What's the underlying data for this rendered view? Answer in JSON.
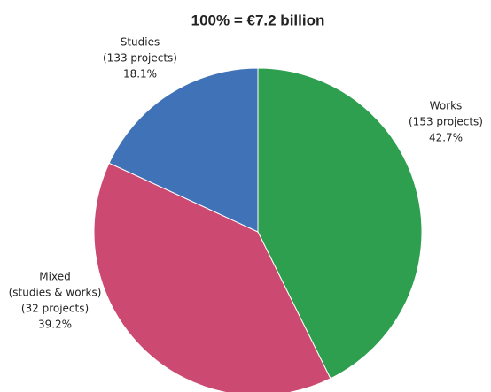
{
  "chart_data": {
    "type": "pie",
    "subtitle": "100% = €7.2 billion",
    "categories": [
      "Works",
      "Mixed",
      "Studies"
    ],
    "details": [
      [
        "(153 projects)"
      ],
      [
        "(studies & works)",
        "(32 projects)"
      ],
      [
        "(133 projects)"
      ]
    ],
    "values": [
      42.7,
      39.2,
      18.1
    ],
    "value_labels": [
      "42.7%",
      "39.2%",
      "18.1%"
    ],
    "colors": [
      "#2e9e4f",
      "#cc4a72",
      "#4072b8"
    ]
  }
}
